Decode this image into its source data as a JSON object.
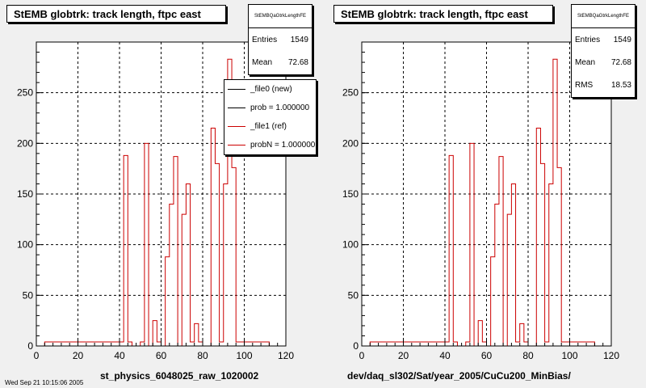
{
  "panels": [
    {
      "title": "StEMB globtrk: track length, ftpc east",
      "xtitle": "st_physics_6048025_raw_1020002",
      "stats": {
        "name": "StEMBQaGtrkLengthFE",
        "rows": [
          {
            "label": "Entries",
            "value": "1549"
          },
          {
            "label": "Mean",
            "value": "72.68"
          }
        ]
      },
      "legend": [
        {
          "label": "_file0 (new)",
          "color": "#000000"
        },
        {
          "label": "prob = 1.000000",
          "color": "#000000"
        },
        {
          "label": "_file1 (ref)",
          "color": "#cc0000"
        },
        {
          "label": "probN = 1.000000",
          "color": "#cc0000"
        }
      ]
    },
    {
      "title": "StEMB globtrk: track length, ftpc east",
      "xtitle": "dev/daq_sl302/Sat/year_2005/CuCu200_MinBias/",
      "stats": {
        "name": "StEMBQaGtrkLengthFE",
        "rows": [
          {
            "label": "Entries",
            "value": "1549"
          },
          {
            "label": "Mean",
            "value": "72.68"
          },
          {
            "label": "RMS",
            "value": "18.53"
          }
        ]
      },
      "legend": []
    }
  ],
  "footer_text": "Wed Sep 21 10:15:06 2005",
  "chart_data": {
    "type": "bar",
    "xlim": [
      0,
      120
    ],
    "ylim": [
      0,
      300
    ],
    "xticks": [
      0,
      20,
      40,
      60,
      80,
      100,
      120
    ],
    "yticks": [
      0,
      50,
      100,
      150,
      200,
      250
    ],
    "grid": true,
    "bin_width": 2,
    "series_color": "#cc0000",
    "bins": [
      {
        "x": 40,
        "y": 4
      },
      {
        "x": 42,
        "y": 188
      },
      {
        "x": 44,
        "y": 4
      },
      {
        "x": 50,
        "y": 4
      },
      {
        "x": 52,
        "y": 200
      },
      {
        "x": 54,
        "y": 0
      },
      {
        "x": 56,
        "y": 25
      },
      {
        "x": 58,
        "y": 4
      },
      {
        "x": 62,
        "y": 88
      },
      {
        "x": 64,
        "y": 140
      },
      {
        "x": 66,
        "y": 187
      },
      {
        "x": 70,
        "y": 130
      },
      {
        "x": 72,
        "y": 160
      },
      {
        "x": 74,
        "y": 4
      },
      {
        "x": 76,
        "y": 22
      },
      {
        "x": 78,
        "y": 4
      },
      {
        "x": 84,
        "y": 215
      },
      {
        "x": 86,
        "y": 180
      },
      {
        "x": 88,
        "y": 4
      },
      {
        "x": 90,
        "y": 160
      },
      {
        "x": 92,
        "y": 283
      },
      {
        "x": 94,
        "y": 176
      },
      {
        "x": 96,
        "y": 4
      }
    ],
    "baseline_y": 4
  }
}
